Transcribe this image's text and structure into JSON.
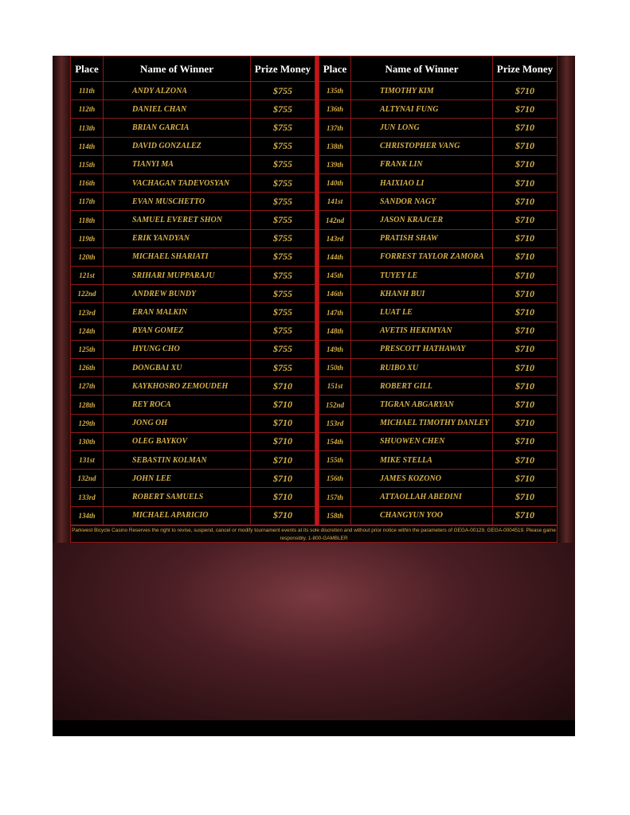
{
  "headers": {
    "place": "Place",
    "name": "Name of Winner",
    "prize": "Prize Money"
  },
  "left_rows": [
    [
      "111th",
      "ANDY ALZONA",
      "$755"
    ],
    [
      "112th",
      "DANIEL CHAN",
      "$755"
    ],
    [
      "113th",
      "BRIAN GARCIA",
      "$755"
    ],
    [
      "114th",
      "DAVID GONZALEZ",
      "$755"
    ],
    [
      "115th",
      "TIANYI MA",
      "$755"
    ],
    [
      "116th",
      "VACHAGAN TADEVOSYAN",
      "$755"
    ],
    [
      "117th",
      "EVAN MUSCHETTO",
      "$755"
    ],
    [
      "118th",
      "SAMUEL EVERET SHON",
      "$755"
    ],
    [
      "119th",
      "ERIK YANDYAN",
      "$755"
    ],
    [
      "120th",
      "MICHAEL SHARIATI",
      "$755"
    ],
    [
      "121st",
      "SRIHARI MUPPARAJU",
      "$755"
    ],
    [
      "122nd",
      "ANDREW BUNDY",
      "$755"
    ],
    [
      "123rd",
      "ERAN MALKIN",
      "$755"
    ],
    [
      "124th",
      "RYAN GOMEZ",
      "$755"
    ],
    [
      "125th",
      "HYUNG CHO",
      "$755"
    ],
    [
      "126th",
      "DONGBAI XU",
      "$755"
    ],
    [
      "127th",
      "KAYKHOSRO ZEMOUDEH",
      "$710"
    ],
    [
      "128th",
      "REY ROCA",
      "$710"
    ],
    [
      "129th",
      "JONG OH",
      "$710"
    ],
    [
      "130th",
      "OLEG BAYKOV",
      "$710"
    ],
    [
      "131st",
      "SEBASTIN KOLMAN",
      "$710"
    ],
    [
      "132nd",
      "JOHN LEE",
      "$710"
    ],
    [
      "133rd",
      "ROBERT SAMUELS",
      "$710"
    ],
    [
      "134th",
      "MICHAEL APARICIO",
      "$710"
    ]
  ],
  "right_rows": [
    [
      "135th",
      "TIMOTHY KIM",
      "$710"
    ],
    [
      "136th",
      "ALTYNAI FUNG",
      "$710"
    ],
    [
      "137th",
      "JUN LONG",
      "$710"
    ],
    [
      "138th",
      "CHRISTOPHER VANG",
      "$710"
    ],
    [
      "139th",
      "FRANK LIN",
      "$710"
    ],
    [
      "140th",
      "HAIXIAO LI",
      "$710"
    ],
    [
      "141st",
      "SANDOR NAGY",
      "$710"
    ],
    [
      "142nd",
      "JASON KRAJCER",
      "$710"
    ],
    [
      "143rd",
      "PRATISH SHAW",
      "$710"
    ],
    [
      "144th",
      "FORREST TAYLOR ZAMORA",
      "$710"
    ],
    [
      "145th",
      "TUYEY LE",
      "$710"
    ],
    [
      "146th",
      "KHANH BUI",
      "$710"
    ],
    [
      "147th",
      "LUAT LE",
      "$710"
    ],
    [
      "148th",
      "AVETIS HEKIMYAN",
      "$710"
    ],
    [
      "149th",
      "PRESCOTT HATHAWAY",
      "$710"
    ],
    [
      "150th",
      "RUIBO XU",
      "$710"
    ],
    [
      "151st",
      "ROBERT GILL",
      "$710"
    ],
    [
      "152nd",
      "TIGRAN ABGARYAN",
      "$710"
    ],
    [
      "153rd",
      "MICHAEL TIMOTHY DANLEY",
      "$710"
    ],
    [
      "154th",
      "SHUOWEN CHEN",
      "$710"
    ],
    [
      "155th",
      "MIKE STELLA",
      "$710"
    ],
    [
      "156th",
      "JAMES KOZONO",
      "$710"
    ],
    [
      "157th",
      "ATTAOLLAH ABEDINI",
      "$710"
    ],
    [
      "158th",
      "CHANGYUN YOO",
      "$710"
    ]
  ],
  "footer": "Parkwest Bicycle Casino Reserves the right to revise, suspend, cancel or modify tournament events at its sole discretion and without prior notice within the parameters of GEGA-00129, GEGA-0004519. Please game responsibly. 1-800-GAMBLER",
  "colors": {
    "text_gold": "#d8b04a",
    "border_red": "#8e1a1a",
    "divider_red": "#c81414"
  }
}
